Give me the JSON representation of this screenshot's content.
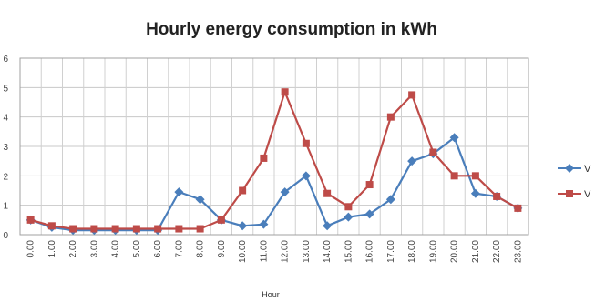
{
  "chart_data": {
    "type": "line",
    "title": "Hourly energy consumption  in kWh",
    "xlabel": "Hour",
    "ylabel": "",
    "x": [
      "0.00",
      "1.00",
      "2.00",
      "3.00",
      "4.00",
      "5.00",
      "6.00",
      "7.00",
      "8.00",
      "9.00",
      "10.00",
      "11.00",
      "12.00",
      "13.00",
      "14.00",
      "15.00",
      "16.00",
      "17.00",
      "18.00",
      "19.00",
      "20.00",
      "21.00",
      "22.00",
      "23.00"
    ],
    "ylim": [
      0,
      6
    ],
    "yticks": [
      0,
      1,
      2,
      3,
      4,
      5,
      6
    ],
    "grid": true,
    "legend": "right",
    "series": [
      {
        "name": "V",
        "color": "#4a7ebb",
        "marker": "diamond",
        "values": [
          0.5,
          0.25,
          0.15,
          0.15,
          0.15,
          0.15,
          0.15,
          1.45,
          1.2,
          0.5,
          0.3,
          0.35,
          1.45,
          2.0,
          0.3,
          0.6,
          0.7,
          1.2,
          2.5,
          2.75,
          3.3,
          1.4,
          1.3,
          0.9
        ]
      },
      {
        "name": "V",
        "color": "#be4b48",
        "marker": "square",
        "values": [
          0.5,
          0.3,
          0.2,
          0.2,
          0.2,
          0.2,
          0.2,
          0.2,
          0.2,
          0.5,
          1.5,
          2.6,
          4.85,
          3.1,
          1.4,
          0.95,
          1.7,
          4.0,
          4.75,
          2.8,
          2.0,
          2.0,
          1.3,
          0.9
        ]
      }
    ]
  }
}
